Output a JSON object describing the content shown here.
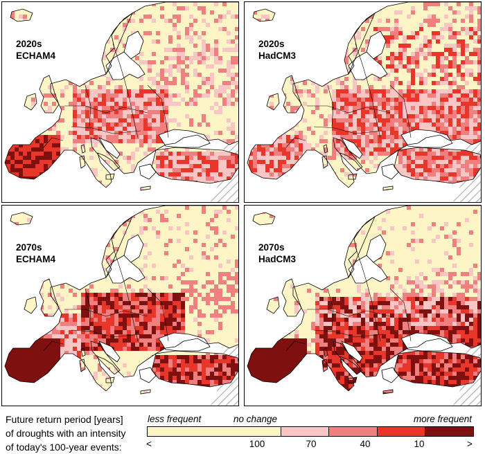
{
  "panels": [
    {
      "id": "p1",
      "period": "2020s",
      "model": "ECHAM4"
    },
    {
      "id": "p2",
      "period": "2020s",
      "model": "HadCM3"
    },
    {
      "id": "p3",
      "period": "2070s",
      "model": "ECHAM4"
    },
    {
      "id": "p4",
      "period": "2070s",
      "model": "HadCM3"
    }
  ],
  "legend": {
    "caption_line1": "Future return period [years]",
    "caption_line2": "of droughts with an intensity",
    "caption_line3": "of today's 100-year events:",
    "less_frequent": "less frequent",
    "no_change": "no change",
    "more_frequent": "more frequent",
    "ticks": [
      "<",
      "100",
      "70",
      "40",
      "10",
      ">"
    ],
    "colors": [
      "#fdf5c5",
      "#f9c5c5",
      "#f08080",
      "#e8362a",
      "#7e1010"
    ]
  },
  "colors": {
    "land_base": "#fdf5c5",
    "sea": "#ffffff",
    "hatch": "#bdbdbd",
    "border": "#000000"
  }
}
